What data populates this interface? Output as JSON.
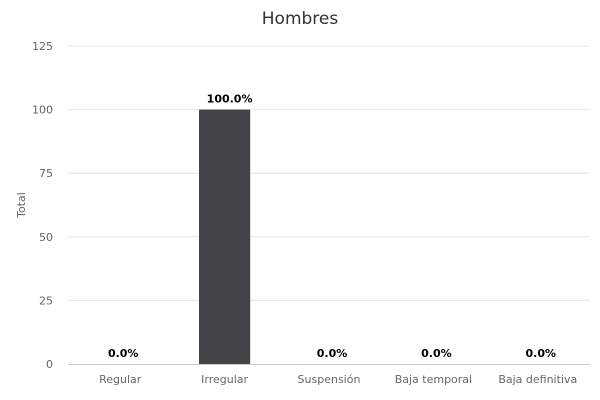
{
  "colors": {
    "bar": "#434246",
    "grid": "#e6e6e6",
    "axis": "#cccccc",
    "text": "#666666"
  },
  "chart_data": {
    "type": "bar",
    "title": "Hombres",
    "xlabel": "",
    "ylabel": "Total",
    "categories": [
      "Regular",
      "Irregular",
      "Suspensión",
      "Baja temporal",
      "Baja definitiva"
    ],
    "values": [
      0,
      100,
      0,
      0,
      0
    ],
    "data_labels": [
      "0.0%",
      "100.0%",
      "0.0%",
      "0.0%",
      "0.0%"
    ],
    "ylim": [
      0,
      125
    ],
    "yticks": [
      0,
      25,
      50,
      75,
      100,
      125
    ],
    "grid": true,
    "legend": "none"
  }
}
